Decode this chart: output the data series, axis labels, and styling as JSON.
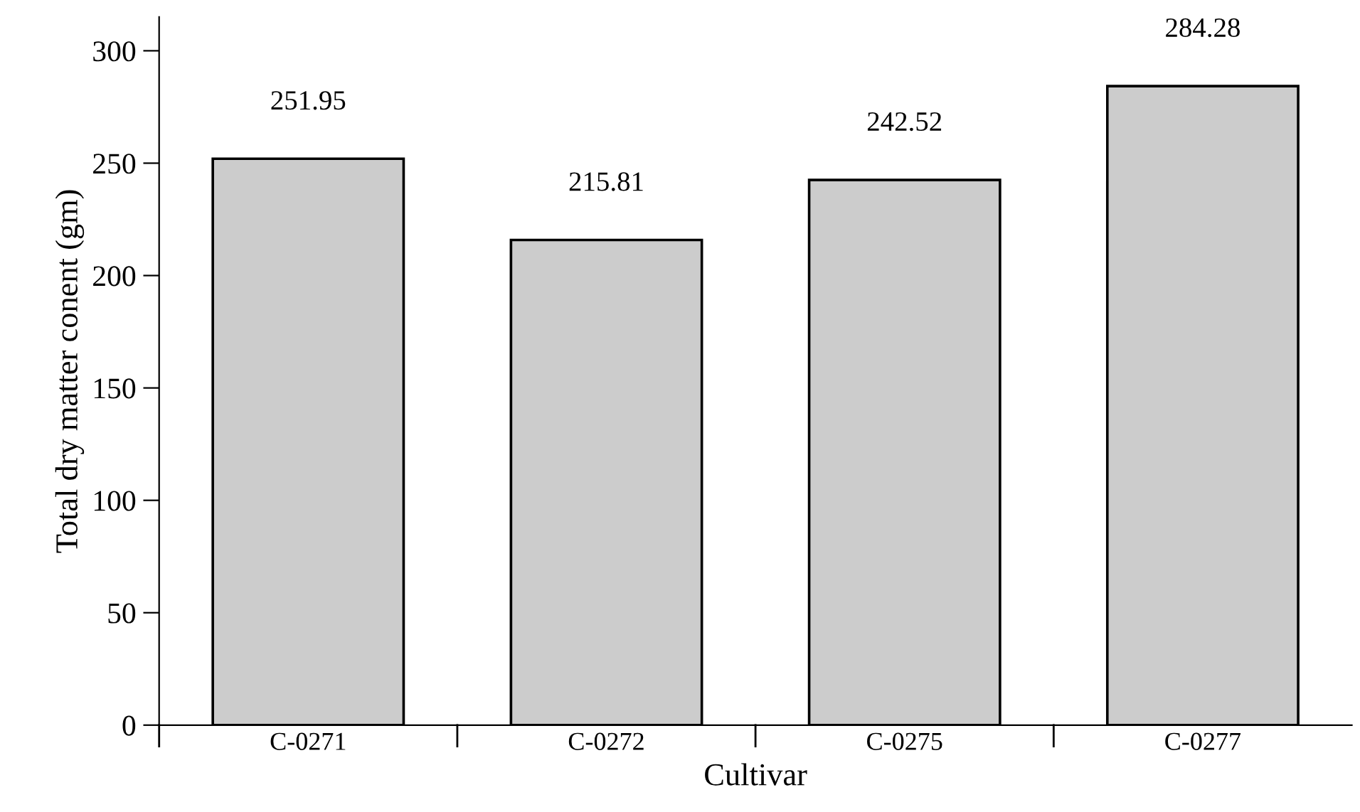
{
  "chart_data": {
    "type": "bar",
    "xlabel": "Cultivar",
    "ylabel": "Total dry matter conent (gm)",
    "categories": [
      "C-0271",
      "C-0272",
      "C-0275",
      "C-0277"
    ],
    "values": [
      251.95,
      215.81,
      242.52,
      284.28
    ],
    "color": "#cccccc",
    "ylim": [
      0,
      315
    ],
    "yticks": [
      0,
      50,
      100,
      150,
      200,
      250,
      300
    ],
    "data_labels": true,
    "grid": false
  }
}
